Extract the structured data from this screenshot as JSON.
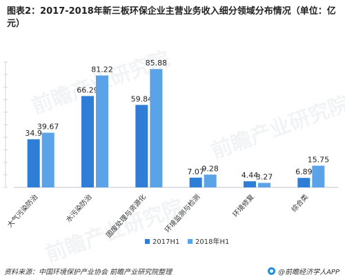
{
  "title": "图表2：2017-2018年新三板环保企业主营业务收入细分领域分布情况（单位：亿元）",
  "chart_data": {
    "type": "bar",
    "title": "图表2：2017-2018年新三板环保企业主营业务收入细分领域分布情况（单位：亿元）",
    "categories": [
      "大气污染防治",
      "水污染防治",
      "固废处理与资源化",
      "环境监测与检测",
      "环境修复",
      "综合类"
    ],
    "series": [
      {
        "name": "2017H1",
        "values": [
          34.9,
          66.29,
          59.84,
          7.07,
          4.44,
          6.89
        ],
        "color": "#2e7dd6"
      },
      {
        "name": "2018年H1",
        "values": [
          39.67,
          81.22,
          85.88,
          9.28,
          3.27,
          15.75
        ],
        "color": "#5aa3e8"
      }
    ],
    "ylim": [
      0,
      100
    ],
    "xlabel": "",
    "ylabel": "",
    "legend": "bottom",
    "grid": false
  },
  "footer": {
    "source": "资料来源：中国环境保护产业协会  前瞻产业研究院整理",
    "brand": "@前瞻经济学人APP",
    "brand_icon": "qianzhan-logo-icon"
  },
  "watermark": "前瞻产业研究院"
}
